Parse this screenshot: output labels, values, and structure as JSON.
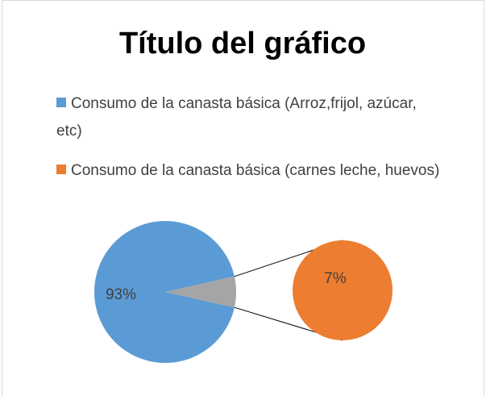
{
  "chart_data": {
    "type": "pie-of-pie",
    "title": "Título del gráfico",
    "categories": [
      "Consumo de la canasta básica (Arroz,frijol, azúcar, etc)",
      "Consumo de la canasta básica (carnes leche, huevos)"
    ],
    "values": [
      93,
      7
    ],
    "value_labels": [
      "93%",
      "7%"
    ],
    "colors": [
      "#5b9bd5",
      "#ed7d31"
    ],
    "other_color": "#a5a5a5",
    "legend": "top"
  }
}
